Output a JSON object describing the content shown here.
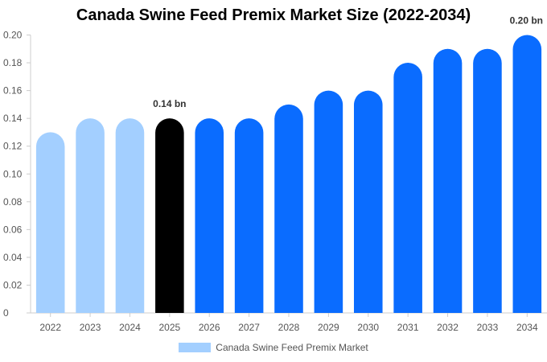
{
  "chart_data": {
    "type": "bar",
    "title": "Canada Swine Feed Premix Market Size (2022-2034)",
    "categories": [
      "2022",
      "2023",
      "2024",
      "2025",
      "2026",
      "2027",
      "2028",
      "2029",
      "2030",
      "2031",
      "2032",
      "2033",
      "2034"
    ],
    "series": [
      {
        "name": "Canada Swine Feed Premix Market",
        "values": [
          0.13,
          0.14,
          0.14,
          0.14,
          0.14,
          0.14,
          0.15,
          0.16,
          0.16,
          0.18,
          0.19,
          0.19,
          0.2
        ]
      }
    ],
    "ylim": [
      0,
      0.2
    ],
    "yticks": [
      "0",
      "0.02",
      "0.04",
      "0.06",
      "0.08",
      "0.10",
      "0.12",
      "0.14",
      "0.16",
      "0.18",
      "0.20"
    ],
    "grid": false,
    "legend_position": "bottom",
    "annotations": [
      {
        "category": "2025",
        "text": "0.14 bn"
      },
      {
        "category": "2034",
        "text": "0.20 bn"
      }
    ],
    "bar_colors": {
      "historical": "#a3cfff",
      "current": "#000000",
      "forecast": "#0a6cff"
    },
    "bar_color_keys": [
      "historical",
      "historical",
      "historical",
      "current",
      "forecast",
      "forecast",
      "forecast",
      "forecast",
      "forecast",
      "forecast",
      "forecast",
      "forecast",
      "forecast"
    ],
    "axis_color": "#cccccc",
    "tick_text_color": "#555555"
  }
}
